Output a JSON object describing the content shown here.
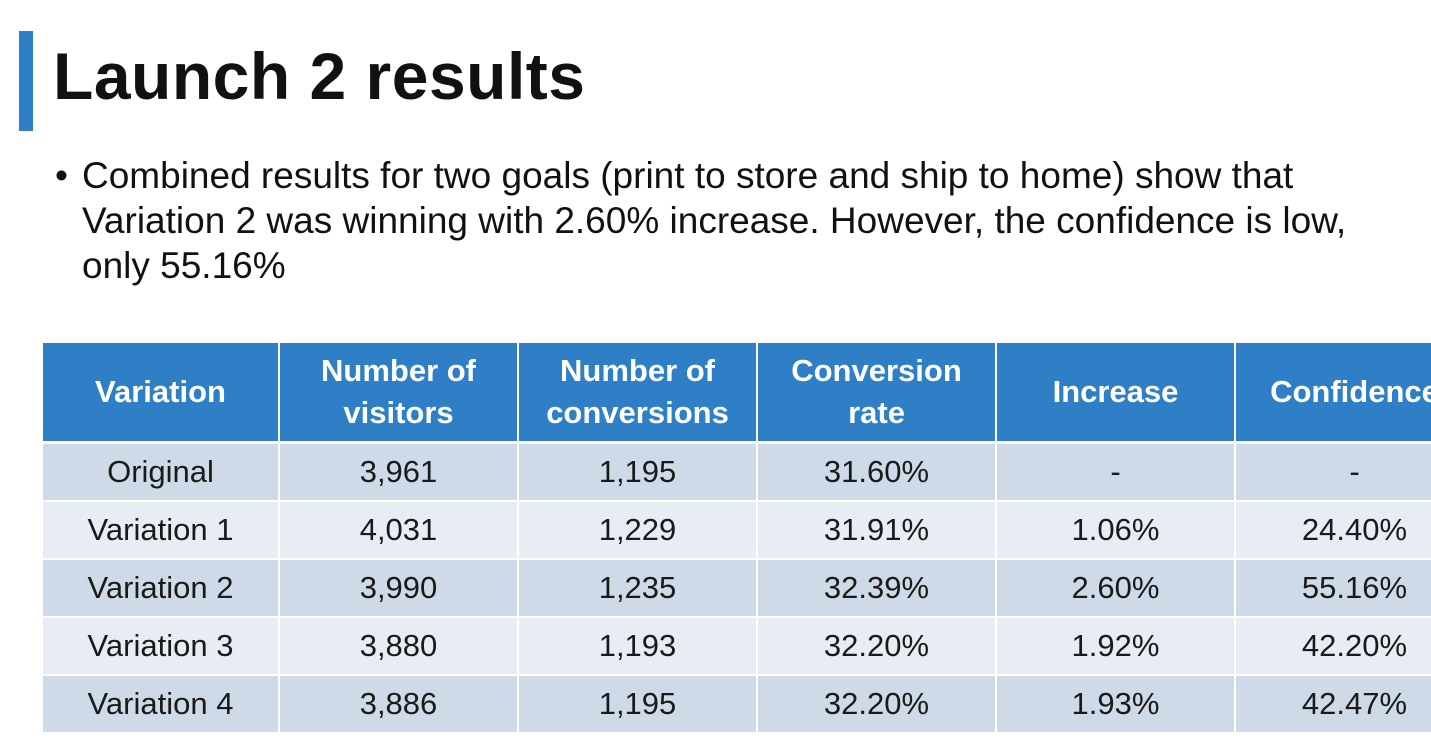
{
  "theme": {
    "accent": "#2e7fc6",
    "header_bg": "#2e7fc6",
    "row_dark": "#cfdae8",
    "row_light": "#e8edf5"
  },
  "slide": {
    "title": "Launch 2 results",
    "bullets": [
      "Combined results for two goals (print to store and ship to home) show that Variation 2 was winning with 2.60% increase. However, the confidence is low, only 55.16%"
    ]
  },
  "table": {
    "headers": [
      "Variation",
      "Number of visitors",
      "Number of conversions",
      "Conversion rate",
      "Increase",
      "Confidence"
    ],
    "rows": [
      [
        "Original",
        "3,961",
        "1,195",
        "31.60%",
        "-",
        "-"
      ],
      [
        "Variation 1",
        "4,031",
        "1,229",
        "31.91%",
        "1.06%",
        "24.40%"
      ],
      [
        "Variation 2",
        "3,990",
        "1,235",
        "32.39%",
        "2.60%",
        "55.16%"
      ],
      [
        "Variation 3",
        "3,880",
        "1,193",
        "32.20%",
        "1.92%",
        "42.20%"
      ],
      [
        "Variation 4",
        "3,886",
        "1,195",
        "32.20%",
        "1.93%",
        "42.47%"
      ]
    ]
  }
}
